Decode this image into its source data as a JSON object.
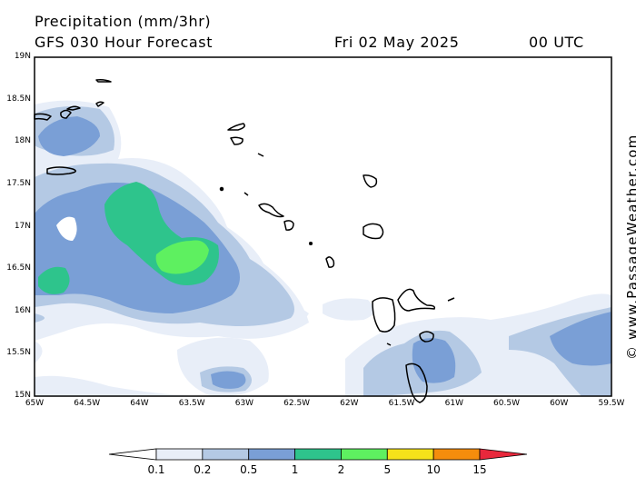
{
  "header": {
    "line1": "Precipitation (mm/3hr)",
    "line2": "GFS 030 Hour Forecast",
    "date": "Fri 02 May 2025",
    "time": "00 UTC"
  },
  "credit": "© www.PassageWeather.com",
  "map": {
    "lat_labels": [
      "19N",
      "18.5N",
      "18N",
      "17.5N",
      "17N",
      "16.5N",
      "16N",
      "15.5N",
      "15N"
    ],
    "lon_labels": [
      "65W",
      "64.5W",
      "64W",
      "63.5W",
      "63W",
      "62.5W",
      "62W",
      "61.5W",
      "61W",
      "60.5W",
      "60W",
      "59.5W"
    ],
    "extent": {
      "lon_min": -65,
      "lon_max": -59.5,
      "lat_min": 15,
      "lat_max": 19
    }
  },
  "colorbar": {
    "labels": [
      "0.1",
      "0.2",
      "0.5",
      "1",
      "2",
      "5",
      "10",
      "15"
    ],
    "colors": [
      "#e8eef8",
      "#b4c9e4",
      "#7a9fd6",
      "#2ec48c",
      "#5ef060",
      "#f5e21a",
      "#f58d0c",
      "#e8283c"
    ]
  }
}
